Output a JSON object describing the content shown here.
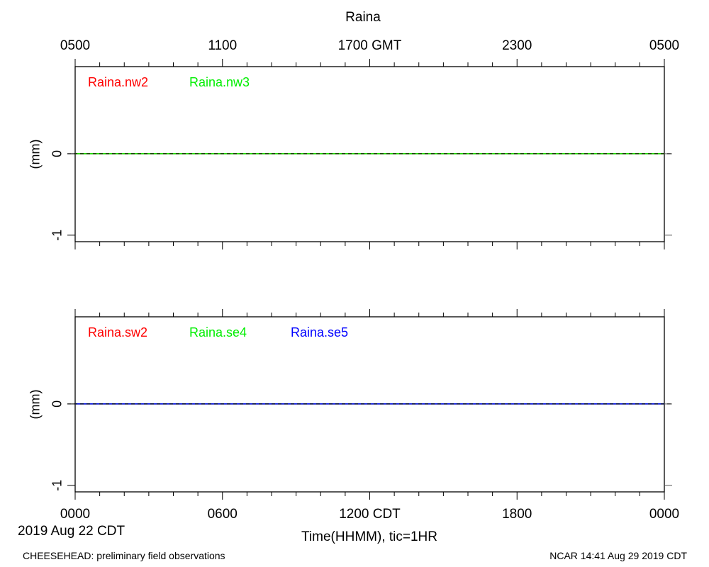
{
  "chart_data": {
    "type": "line",
    "title": "Raina",
    "top_axis": {
      "ticks": [
        {
          "hour": 0,
          "label": "0500"
        },
        {
          "hour": 6,
          "label": "1100"
        },
        {
          "hour": 12,
          "label": "1700 GMT"
        },
        {
          "hour": 18,
          "label": "2300"
        },
        {
          "hour": 24,
          "label": "0500"
        }
      ]
    },
    "bottom_axis": {
      "ticks": [
        {
          "hour": 0,
          "label": "0000"
        },
        {
          "hour": 6,
          "label": "0600"
        },
        {
          "hour": 12,
          "label": "1200 CDT"
        },
        {
          "hour": 18,
          "label": "1800"
        },
        {
          "hour": 24,
          "label": "0000"
        }
      ],
      "xlabel": "Time(HHMM), tic=1HR",
      "date_label": "2019 Aug 22 CDT"
    },
    "xlim": [
      0,
      24
    ],
    "panels": [
      {
        "ylabel": "(mm)",
        "ylim": [
          -1.08,
          1.07
        ],
        "yticks": [
          0,
          -1
        ],
        "series": [
          {
            "name": "Raina.nw2",
            "color": "#ff0000",
            "values": [
              [
                0,
                0
              ],
              [
                24,
                0
              ]
            ]
          },
          {
            "name": "Raina.nw3",
            "color": "#00ee00",
            "values": [
              [
                0,
                0
              ],
              [
                24,
                0
              ]
            ]
          }
        ]
      },
      {
        "ylabel": "(mm)",
        "ylim": [
          -1.08,
          1.07
        ],
        "yticks": [
          0,
          -1
        ],
        "series": [
          {
            "name": "Raina.sw2",
            "color": "#ff0000",
            "values": [
              [
                0,
                0
              ],
              [
                24,
                0
              ]
            ]
          },
          {
            "name": "Raina.se4",
            "color": "#00ee00",
            "values": [
              [
                0,
                0
              ],
              [
                24,
                0
              ]
            ]
          },
          {
            "name": "Raina.se5",
            "color": "#0000ff",
            "values": [
              [
                0,
                0
              ],
              [
                24,
                0
              ]
            ]
          }
        ]
      }
    ]
  },
  "footer": {
    "left": "CHEESEHEAD: preliminary field observations",
    "right": "NCAR 14:41 Aug 29 2019 CDT"
  }
}
